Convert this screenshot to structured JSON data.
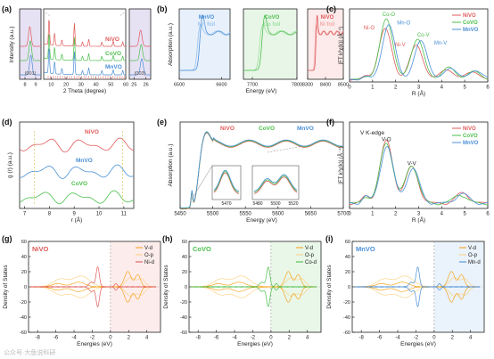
{
  "colors": {
    "red": "#e05a5a",
    "green": "#4bbf4b",
    "blue": "#4a8fd6",
    "red_light": "#f2aaaa",
    "green_light": "#9fdf9f",
    "blue_light": "#9cc3ee",
    "orange": "#f5a623",
    "orange_light": "#fbd38a",
    "purple": "#c9a0dc",
    "axis": "#222222",
    "dash": "#aaaaaa"
  },
  "watermark": "公众号·大鱼说科研",
  "chart_data": [
    {
      "id": "a",
      "panel_label": "(a)",
      "type": "line",
      "xlabel": "2 Theta (degree)",
      "ylabel": "Intensity (a.u.)",
      "subpanels": [
        {
          "xlim": [
            7.5,
            9.5
          ],
          "ticks": [
            "8",
            "9"
          ],
          "annotation": "(001)"
        },
        {
          "xlim": [
            5,
            60
          ],
          "ticks": [
            "10",
            "20",
            "30",
            "40",
            "50",
            "60"
          ]
        },
        {
          "xlim": [
            24.6,
            26.4
          ],
          "ticks": [
            "25",
            "26"
          ],
          "annotation": "(003)"
        }
      ],
      "series": [
        {
          "name": "NiVO",
          "color": "red"
        },
        {
          "name": "CoVO",
          "color": "green"
        },
        {
          "name": "MnVO",
          "color": "blue"
        }
      ],
      "main_peaks": [
        {
          "x": 8.6,
          "h": 30
        },
        {
          "x": 12.3,
          "h": 14
        },
        {
          "x": 17.2,
          "h": 7
        },
        {
          "x": 25.6,
          "h": 26
        },
        {
          "x": 31,
          "h": 5
        },
        {
          "x": 35.2,
          "h": 8
        },
        {
          "x": 44,
          "h": 5
        },
        {
          "x": 51.6,
          "h": 6
        },
        {
          "x": 58,
          "h": 5
        }
      ],
      "inset_peaks": {
        "left": {
          "x": 8.5,
          "h": 22
        },
        "right": {
          "x": 25.6,
          "h": 18
        }
      }
    },
    {
      "id": "b",
      "panel_label": "(b)",
      "type": "line",
      "xlabel": "Energy (eV)",
      "ylabel": "Absorption (a.u.)",
      "subpanels": [
        {
          "xlim": [
            6500,
            6620
          ],
          "ticks": [
            "6500",
            "6600"
          ],
          "legend": [
            {
              "text": "MnVO",
              "color": "blue"
            },
            {
              "text": "Mn foil",
              "color": "blue_light"
            }
          ],
          "edge": 6545,
          "color": "blue",
          "light": "blue_light"
        },
        {
          "xlim": [
            7680,
            7800
          ],
          "ticks": [
            "7700",
            "7800"
          ],
          "legend": [
            {
              "text": "CoVO",
              "color": "green"
            },
            {
              "text": "Co foil",
              "color": "green_light"
            }
          ],
          "edge": 7718,
          "color": "green",
          "light": "green_light"
        },
        {
          "xlim": [
            8300,
            8500
          ],
          "ticks": [
            "8300",
            "8400",
            "8500"
          ],
          "legend": [
            {
              "text": "NiVO",
              "color": "red"
            },
            {
              "text": "Ni foil",
              "color": "red_light"
            }
          ],
          "edge": 8343,
          "color": "red",
          "light": "red_light"
        }
      ]
    },
    {
      "id": "c",
      "panel_label": "(c)",
      "type": "line",
      "xlabel": "R (Å)",
      "ylabel": "|FT k³χ(k)| (Å⁻⁴)",
      "xlim": [
        0,
        6
      ],
      "xticks": [
        0,
        1,
        2,
        3,
        4,
        5,
        6
      ],
      "ylim": [
        0,
        1.8
      ],
      "series": [
        {
          "name": "NiVO",
          "color": "red",
          "peaks": [
            [
              1.55,
              1.25
            ],
            [
              2.9,
              0.85
            ],
            [
              4.2,
              0.25
            ],
            [
              5.3,
              0.2
            ]
          ]
        },
        {
          "name": "CoVO",
          "color": "green",
          "peaks": [
            [
              1.6,
              1.5
            ],
            [
              2.95,
              1.0
            ],
            [
              4.3,
              0.3
            ],
            [
              5.4,
              0.2
            ]
          ]
        },
        {
          "name": "MnVO",
          "color": "blue",
          "peaks": [
            [
              1.7,
              1.35
            ],
            [
              3.1,
              0.95
            ],
            [
              4.4,
              0.28
            ],
            [
              5.5,
              0.22
            ]
          ]
        }
      ],
      "annotations": [
        {
          "text": "Co-O",
          "color": "green",
          "at": [
            1.7,
            1.62
          ]
        },
        {
          "text": "Mn-O",
          "color": "blue",
          "at": [
            2.35,
            1.42
          ]
        },
        {
          "text": "Ni-O",
          "color": "red",
          "at": [
            0.85,
            1.3
          ]
        },
        {
          "text": "Co-V",
          "color": "green",
          "at": [
            3.2,
            1.12
          ]
        },
        {
          "text": "Ni-V",
          "color": "red",
          "at": [
            2.2,
            0.88
          ]
        },
        {
          "text": "Mn-V",
          "color": "blue",
          "at": [
            3.95,
            0.92
          ]
        }
      ]
    },
    {
      "id": "d",
      "panel_label": "(d)",
      "type": "line",
      "xlabel": "r (Å)",
      "ylabel": "g (r) (a.u.)",
      "xlim": [
        6.8,
        11.4
      ],
      "xticks": [
        7,
        8,
        9,
        10,
        11
      ],
      "series": [
        {
          "name": "NiVO",
          "color": "red"
        },
        {
          "name": "MnVO",
          "color": "blue"
        },
        {
          "name": "CoVO",
          "color": "green"
        }
      ],
      "dashed_x": [
        7.4,
        10.95
      ]
    },
    {
      "id": "e",
      "panel_label": "(e)",
      "type": "line",
      "xlabel": "Energy (eV)",
      "ylabel": "Absorption (a.u.)",
      "xlim": [
        5450,
        5700
      ],
      "xticks": [
        5450,
        5500,
        5550,
        5600,
        5650,
        5700
      ],
      "ylim": [
        0,
        1.4
      ],
      "series": [
        {
          "name": "NiVO",
          "color": "red"
        },
        {
          "name": "CoVO",
          "color": "green"
        },
        {
          "name": "MnVO",
          "color": "blue"
        }
      ],
      "insets": [
        {
          "xticks": [
            "5470"
          ]
        },
        {
          "xticks": [
            "5480",
            "5500",
            "5520"
          ]
        }
      ]
    },
    {
      "id": "f",
      "panel_label": "(f)",
      "type": "line",
      "title": "V K-edge",
      "xlabel": "R (Å)",
      "ylabel": "|FT k³χ(k)| (Å⁻⁴)",
      "xlim": [
        0,
        6
      ],
      "xticks": [
        0,
        1,
        2,
        3,
        4,
        5,
        6
      ],
      "ylim": [
        0,
        1.0
      ],
      "series": [
        {
          "name": "NiVO",
          "color": "red",
          "peaks": [
            [
              1.6,
              0.72
            ],
            [
              2.7,
              0.42
            ],
            [
              4.9,
              0.12
            ]
          ]
        },
        {
          "name": "CoVO",
          "color": "green",
          "peaks": [
            [
              1.6,
              0.7
            ],
            [
              2.7,
              0.44
            ],
            [
              4.8,
              0.1
            ]
          ]
        },
        {
          "name": "MnVO",
          "color": "blue",
          "peaks": [
            [
              1.62,
              0.66
            ],
            [
              2.75,
              0.4
            ],
            [
              4.9,
              0.11
            ]
          ]
        }
      ],
      "annotations": [
        {
          "text": "V-O",
          "at": [
            1.6,
            0.78
          ]
        },
        {
          "text": "V-V",
          "at": [
            2.7,
            0.5
          ]
        }
      ]
    },
    {
      "id": "g",
      "panel_label": "(g)",
      "type": "line",
      "name": "NiVO",
      "name_color": "red",
      "xlabel": "Energies (eV)",
      "ylabel": "Density of States",
      "xlim": [
        -9,
        5.5
      ],
      "ylim": [
        -60,
        60
      ],
      "xticks": [
        -8,
        -6,
        -4,
        -2,
        0,
        2,
        4
      ],
      "yticks": [
        -60,
        -40,
        -20,
        0,
        20,
        40,
        60
      ],
      "legend": [
        {
          "text": "V-d",
          "color": "orange"
        },
        {
          "text": "O-p",
          "color": "orange_light"
        },
        {
          "text": "Ni-d",
          "color": "red"
        }
      ],
      "bg": "#fdecec",
      "metal_color": "red",
      "metal_peak": -1.4
    },
    {
      "id": "h",
      "panel_label": "(h)",
      "type": "line",
      "name": "CoVO",
      "name_color": "green",
      "xlabel": "Energies (eV)",
      "ylabel": "Density of States",
      "xlim": [
        -9,
        5.5
      ],
      "ylim": [
        -60,
        60
      ],
      "xticks": [
        -8,
        -6,
        -4,
        -2,
        0,
        2,
        4
      ],
      "yticks": [
        -60,
        -40,
        -20,
        0,
        20,
        40,
        60
      ],
      "legend": [
        {
          "text": "V-d",
          "color": "orange"
        },
        {
          "text": "O-p",
          "color": "orange_light"
        },
        {
          "text": "Co-d",
          "color": "green"
        }
      ],
      "bg": "#e9f7e9",
      "metal_color": "green",
      "metal_peak": -0.3
    },
    {
      "id": "i",
      "panel_label": "(i)",
      "type": "line",
      "name": "MnVO",
      "name_color": "blue",
      "xlabel": "Energies (eV)",
      "ylabel": "Density of States",
      "xlim": [
        -9,
        5.5
      ],
      "ylim": [
        -60,
        60
      ],
      "xticks": [
        -8,
        -6,
        -4,
        -2,
        0,
        2,
        4
      ],
      "yticks": [
        -60,
        -40,
        -20,
        0,
        20,
        40,
        60
      ],
      "legend": [
        {
          "text": "V-d",
          "color": "orange"
        },
        {
          "text": "O-p",
          "color": "orange_light"
        },
        {
          "text": "Mn-d",
          "color": "blue"
        }
      ],
      "bg": "#eaf2fb",
      "metal_color": "blue",
      "metal_peak": -1.8
    }
  ]
}
